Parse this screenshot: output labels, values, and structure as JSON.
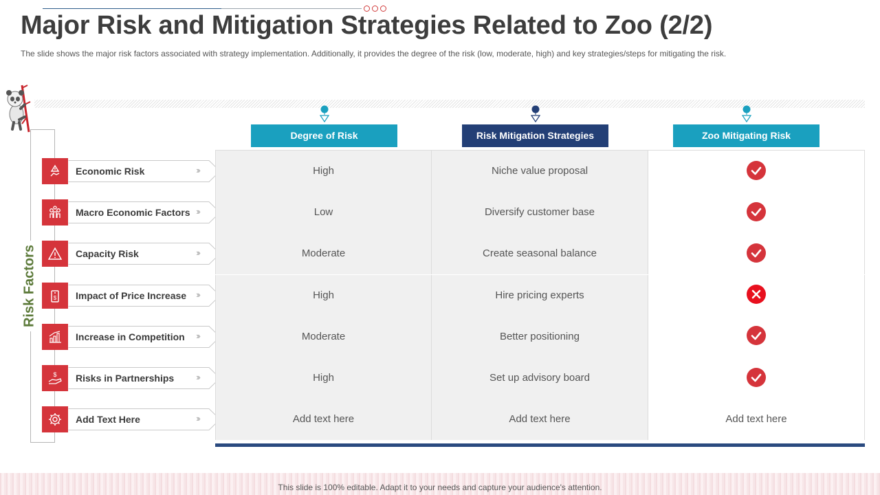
{
  "header": {
    "title": "Major Risk and Mitigation Strategies Related to Zoo (2/2)",
    "subtitle": "The slide shows the major risk factors associated with strategy implementation. Additionally, it provides  the degree of the risk (low, moderate,  high) and key strategies/steps for  mitigating the risk."
  },
  "side_label": "Risk Factors",
  "colors": {
    "accent_red": "#d5343b",
    "teal": "#1aa0bf",
    "navy": "#233f76",
    "label_green": "#5c7a3a"
  },
  "columns": [
    {
      "label": "Degree of Risk",
      "color": "#1aa0bf",
      "icon": "location-pin-icon"
    },
    {
      "label": "Risk Mitigation Strategies",
      "color": "#233f76",
      "icon": "location-pin-icon"
    },
    {
      "label": "Zoo Mitigating Risk",
      "color": "#1aa0bf",
      "icon": "location-pin-icon"
    }
  ],
  "risks": [
    {
      "label": "Economic Risk",
      "icon": "hand-warning-icon",
      "degree": "High",
      "strategy": "Niche value proposal",
      "status": "check"
    },
    {
      "label": "Macro Economic Factors",
      "icon": "people-coins-icon",
      "degree": "Low",
      "strategy": "Diversify customer base",
      "status": "check"
    },
    {
      "label": "Capacity Risk",
      "icon": "warning-triangle-icon",
      "degree": "Moderate",
      "strategy": "Create seasonal balance",
      "status": "check"
    },
    {
      "label": "Impact of Price Increase",
      "icon": "price-tag-icon",
      "degree": "High",
      "strategy": "Hire pricing experts",
      "status": "cross"
    },
    {
      "label": "Increase in Competition",
      "icon": "bar-chart-icon",
      "degree": "Moderate",
      "strategy": "Better positioning",
      "status": "check"
    },
    {
      "label": "Risks in Partnerships",
      "icon": "hand-dollar-icon",
      "degree": "High",
      "strategy": "Set up advisory board",
      "status": "check"
    },
    {
      "label": "Add Text Here",
      "icon": "gear-icon",
      "degree": "Add text here",
      "strategy": "Add text here",
      "status_text": "Add text here"
    }
  ],
  "footer": "This slide is 100% editable. Adapt it to your needs and capture your audience's attention."
}
